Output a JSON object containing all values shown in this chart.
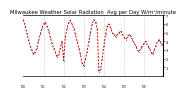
{
  "title": "Milwaukee Weather Solar Radiation  Avg per Day W/m²/minute",
  "title_fontsize": 3.8,
  "background_color": "#ffffff",
  "line_color": "#cc0000",
  "dot_color": "#000000",
  "ylim": [
    0,
    7
  ],
  "ytick_labels": [
    "1",
    "2",
    "3",
    "4",
    "5",
    "6",
    "7"
  ],
  "ytick_vals": [
    1,
    2,
    3,
    4,
    5,
    6,
    7
  ],
  "values": [
    6.5,
    5.8,
    5.0,
    4.2,
    3.5,
    3.0,
    2.5,
    2.8,
    3.2,
    4.0,
    4.8,
    5.5,
    6.0,
    6.2,
    5.8,
    5.2,
    4.5,
    3.8,
    3.2,
    2.8,
    2.2,
    2.5,
    3.2,
    4.0,
    1.8,
    4.5,
    5.5,
    6.2,
    6.4,
    6.0,
    5.5,
    4.8,
    4.0,
    3.2,
    2.5,
    1.5,
    1.2,
    2.0,
    2.8,
    4.0,
    5.0,
    6.0,
    6.5,
    6.2,
    5.5,
    0.5,
    0.8,
    2.0,
    3.5,
    4.8,
    5.8,
    6.0,
    5.5,
    5.0,
    4.8,
    4.5,
    4.8,
    5.0,
    5.2,
    4.8,
    4.5,
    4.2,
    4.5,
    4.8,
    4.6,
    4.2,
    3.8,
    3.5,
    3.0,
    2.8,
    3.2,
    3.5,
    3.8,
    4.0,
    3.5,
    3.2,
    2.8,
    2.5,
    3.0,
    3.5,
    4.0,
    4.2,
    3.8,
    3.5
  ],
  "vline_positions": [
    12,
    24,
    36,
    48,
    60,
    72
  ],
  "n_points": 84
}
